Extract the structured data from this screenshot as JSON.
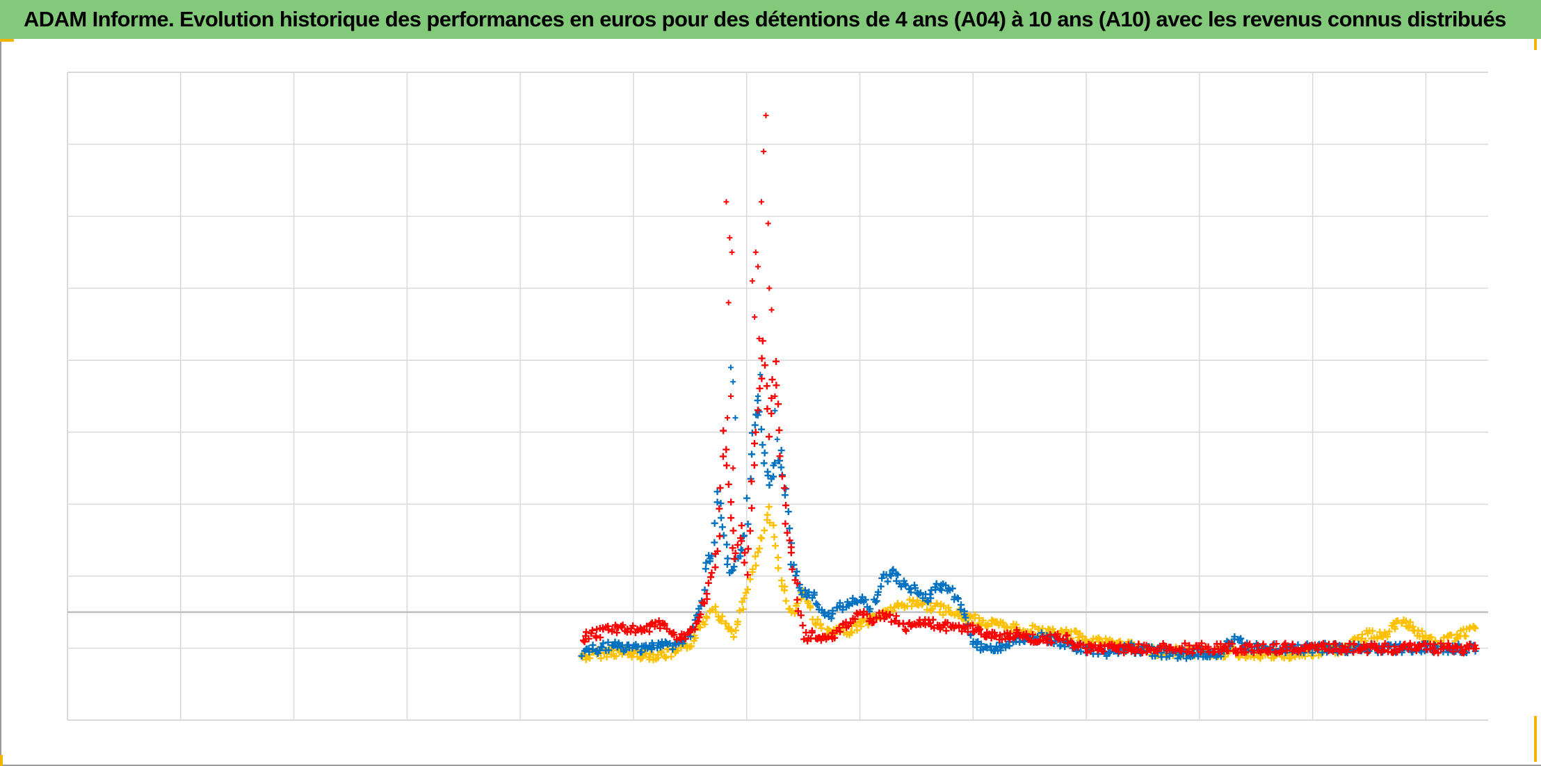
{
  "title": "ADAM Informe. Evolution historique des performances en euros pour des détentions de 4 ans (A04) à 10 ans (A10) avec les revenus connus distribués",
  "colors": {
    "title_bar": "#82c97a",
    "grid": "#d9d9d9",
    "zero_line": "#bfbfbf",
    "handle": "#f2b400"
  },
  "chart_data": {
    "type": "scatter",
    "marker": "plus",
    "grid": true,
    "legend": "none",
    "xlim": [
      0,
      12.55
    ],
    "ylim": [
      -1.5,
      7.5
    ],
    "x_gridlines": [
      1,
      2,
      3,
      4,
      5,
      6,
      7,
      8,
      9,
      10,
      11,
      12
    ],
    "y_gridlines": [
      -1.5,
      -0.5,
      0.5,
      1.5,
      2.5,
      3.5,
      4.5,
      5.5,
      6.5,
      7.5
    ],
    "zero_line": 0,
    "series": [
      {
        "color": "#ffc000",
        "points": [
          [
            4.55,
            -0.62
          ],
          [
            4.8,
            -0.55
          ],
          [
            5.0,
            -0.58
          ],
          [
            5.2,
            -0.6
          ],
          [
            5.4,
            -0.56
          ],
          [
            5.5,
            -0.45
          ],
          [
            5.6,
            -0.2
          ],
          [
            5.7,
            0.1
          ],
          [
            5.8,
            -0.15
          ],
          [
            5.9,
            -0.3
          ],
          [
            6.0,
            0.3
          ],
          [
            6.1,
            0.8
          ],
          [
            6.2,
            1.4
          ],
          [
            6.3,
            0.5
          ],
          [
            6.4,
            -0.05
          ],
          [
            6.5,
            0.3
          ],
          [
            6.6,
            -0.1
          ],
          [
            6.7,
            -0.3
          ],
          [
            6.9,
            -0.25
          ],
          [
            7.1,
            -0.1
          ],
          [
            7.3,
            0.05
          ],
          [
            7.5,
            0.15
          ],
          [
            7.7,
            0.05
          ],
          [
            7.9,
            -0.05
          ],
          [
            8.1,
            -0.15
          ],
          [
            8.3,
            -0.2
          ],
          [
            8.5,
            -0.25
          ],
          [
            8.7,
            -0.3
          ],
          [
            8.9,
            -0.32
          ],
          [
            9.1,
            -0.4
          ],
          [
            9.3,
            -0.45
          ],
          [
            9.5,
            -0.52
          ],
          [
            9.7,
            -0.55
          ],
          [
            9.9,
            -0.55
          ],
          [
            10.1,
            -0.55
          ],
          [
            10.3,
            -0.57
          ],
          [
            10.5,
            -0.58
          ],
          [
            10.7,
            -0.6
          ],
          [
            10.9,
            -0.58
          ],
          [
            11.1,
            -0.55
          ],
          [
            11.3,
            -0.5
          ],
          [
            11.5,
            -0.3
          ],
          [
            11.6,
            -0.35
          ],
          [
            11.8,
            -0.1
          ],
          [
            11.95,
            -0.3
          ],
          [
            12.1,
            -0.45
          ],
          [
            12.3,
            -0.3
          ],
          [
            12.45,
            -0.25
          ]
        ]
      },
      {
        "color": "#0070c0",
        "points": [
          [
            4.55,
            -0.55
          ],
          [
            4.8,
            -0.48
          ],
          [
            5.0,
            -0.5
          ],
          [
            5.2,
            -0.47
          ],
          [
            5.4,
            -0.45
          ],
          [
            5.5,
            -0.3
          ],
          [
            5.6,
            0.05
          ],
          [
            5.65,
            0.7
          ],
          [
            5.7,
            0.8
          ],
          [
            5.75,
            1.7
          ],
          [
            5.8,
            1.0
          ],
          [
            5.85,
            0.5
          ],
          [
            5.95,
            0.8
          ],
          [
            6.0,
            1.2
          ],
          [
            6.05,
            2.5
          ],
          [
            6.1,
            2.9
          ],
          [
            6.15,
            2.2
          ],
          [
            6.2,
            1.8
          ],
          [
            6.3,
            2.2
          ],
          [
            6.35,
            1.6
          ],
          [
            6.4,
            0.7
          ],
          [
            6.5,
            0.25
          ],
          [
            6.6,
            0.2
          ],
          [
            6.7,
            -0.1
          ],
          [
            6.8,
            0.05
          ],
          [
            6.9,
            0.15
          ],
          [
            7.0,
            0.2
          ],
          [
            7.1,
            0.05
          ],
          [
            7.2,
            0.45
          ],
          [
            7.3,
            0.55
          ],
          [
            7.4,
            0.35
          ],
          [
            7.5,
            0.3
          ],
          [
            7.6,
            0.2
          ],
          [
            7.7,
            0.35
          ],
          [
            7.8,
            0.3
          ],
          [
            7.9,
            0.1
          ],
          [
            8.0,
            -0.45
          ],
          [
            8.2,
            -0.5
          ],
          [
            8.4,
            -0.4
          ],
          [
            8.6,
            -0.35
          ],
          [
            8.8,
            -0.45
          ],
          [
            9.0,
            -0.52
          ],
          [
            9.2,
            -0.55
          ],
          [
            9.4,
            -0.5
          ],
          [
            9.6,
            -0.55
          ],
          [
            9.8,
            -0.58
          ],
          [
            10.0,
            -0.58
          ],
          [
            10.2,
            -0.55
          ],
          [
            10.3,
            -0.35
          ],
          [
            10.4,
            -0.45
          ],
          [
            10.5,
            -0.5
          ],
          [
            10.8,
            -0.5
          ],
          [
            11.0,
            -0.5
          ],
          [
            11.5,
            -0.5
          ],
          [
            12.0,
            -0.5
          ],
          [
            12.45,
            -0.5
          ]
        ]
      },
      {
        "color": "#ff0000",
        "points": [
          [
            4.55,
            -0.35
          ],
          [
            4.7,
            -0.3
          ],
          [
            4.8,
            -0.2
          ],
          [
            4.9,
            -0.25
          ],
          [
            5.0,
            -0.22
          ],
          [
            5.15,
            -0.25
          ],
          [
            5.2,
            -0.15
          ],
          [
            5.3,
            -0.2
          ],
          [
            5.4,
            -0.35
          ],
          [
            5.5,
            -0.3
          ],
          [
            5.6,
            0.0
          ],
          [
            5.7,
            0.5
          ],
          [
            5.75,
            1.0
          ],
          [
            5.8,
            2.5
          ],
          [
            5.85,
            1.5
          ],
          [
            5.9,
            0.7
          ],
          [
            5.95,
            1.2
          ],
          [
            6.0,
            0.5
          ],
          [
            6.05,
            1.8
          ],
          [
            6.1,
            2.8
          ],
          [
            6.15,
            3.8
          ],
          [
            6.2,
            2.5
          ],
          [
            6.25,
            3.5
          ],
          [
            6.3,
            2.2
          ],
          [
            6.35,
            1.2
          ],
          [
            6.4,
            0.8
          ],
          [
            6.45,
            0.2
          ],
          [
            6.5,
            -0.35
          ],
          [
            6.6,
            -0.3
          ],
          [
            6.7,
            -0.35
          ],
          [
            6.8,
            -0.3
          ],
          [
            6.9,
            -0.15
          ],
          [
            7.0,
            0.0
          ],
          [
            7.1,
            -0.1
          ],
          [
            7.2,
            -0.05
          ],
          [
            7.3,
            -0.1
          ],
          [
            7.4,
            -0.2
          ],
          [
            7.6,
            -0.15
          ],
          [
            7.8,
            -0.2
          ],
          [
            8.0,
            -0.25
          ],
          [
            8.2,
            -0.35
          ],
          [
            8.4,
            -0.3
          ],
          [
            8.6,
            -0.4
          ],
          [
            8.8,
            -0.35
          ],
          [
            8.9,
            -0.45
          ],
          [
            9.0,
            -0.5
          ],
          [
            9.2,
            -0.5
          ],
          [
            9.5,
            -0.5
          ],
          [
            10.0,
            -0.5
          ],
          [
            10.5,
            -0.5
          ],
          [
            11.0,
            -0.5
          ],
          [
            11.5,
            -0.5
          ],
          [
            12.0,
            -0.5
          ],
          [
            12.45,
            -0.5
          ]
        ]
      }
    ],
    "spikes": [
      {
        "color": "#ff0000",
        "points": [
          [
            5.82,
            5.7
          ],
          [
            5.85,
            5.2
          ],
          [
            5.87,
            5.0
          ],
          [
            5.84,
            4.3
          ],
          [
            5.86,
            3.0
          ],
          [
            5.83,
            2.7
          ],
          [
            5.88,
            2.0
          ],
          [
            6.05,
            4.6
          ],
          [
            6.08,
            5.0
          ],
          [
            6.11,
            3.8
          ],
          [
            6.15,
            6.4
          ],
          [
            6.17,
            6.9
          ],
          [
            6.19,
            5.4
          ],
          [
            6.2,
            4.5
          ],
          [
            6.22,
            4.2
          ],
          [
            6.13,
            5.7
          ],
          [
            6.1,
            4.8
          ],
          [
            6.07,
            4.1
          ],
          [
            6.25,
            3.0
          ]
        ]
      },
      {
        "color": "#0070c0",
        "points": [
          [
            5.86,
            3.4
          ],
          [
            5.88,
            3.2
          ],
          [
            5.9,
            2.7
          ],
          [
            6.1,
            3.0
          ],
          [
            6.12,
            3.3
          ],
          [
            6.25,
            2.8
          ],
          [
            6.27,
            2.4
          ]
        ]
      }
    ]
  }
}
